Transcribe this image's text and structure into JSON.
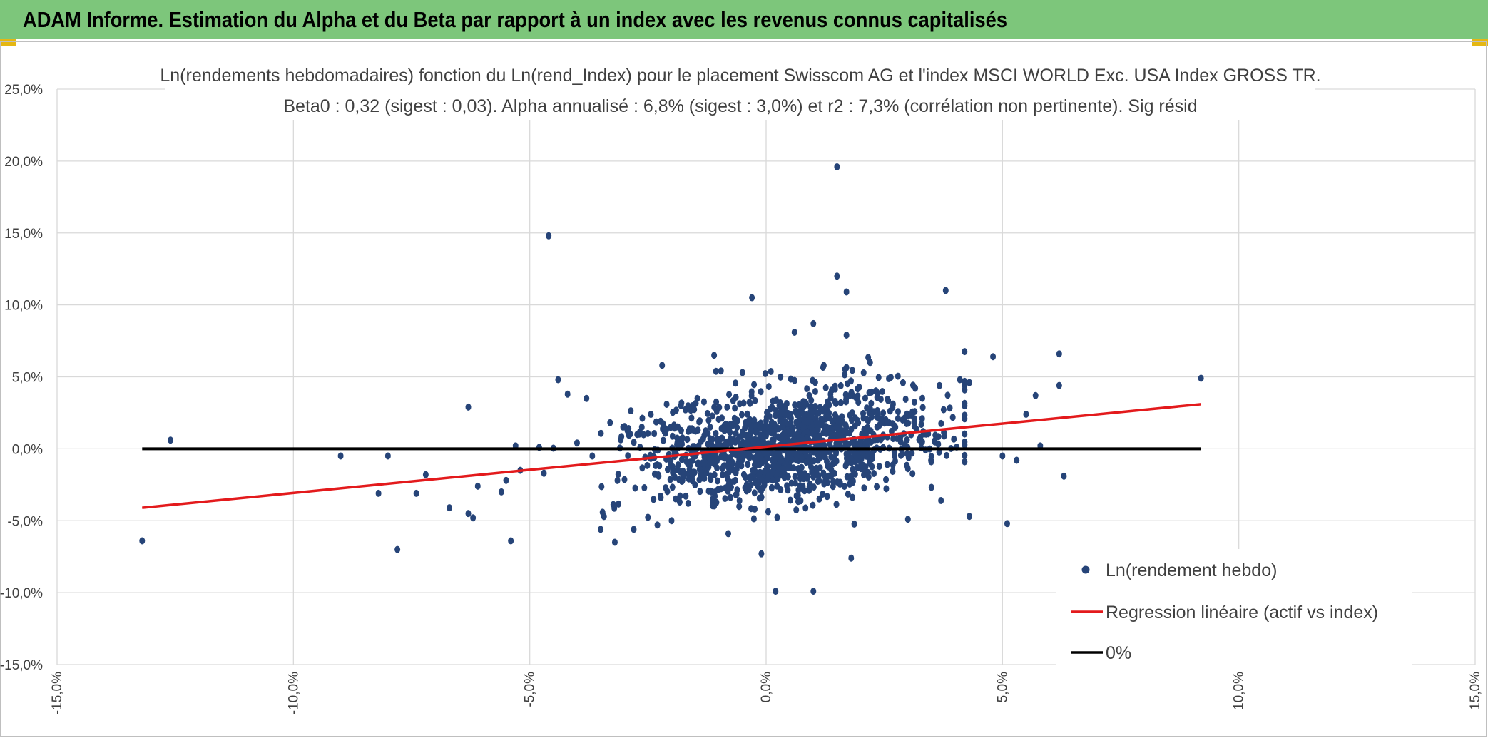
{
  "header": {
    "title": "ADAM Informe. Estimation du Alpha et du Beta par rapport à un index avec les revenus connus capitalisés"
  },
  "colors": {
    "banner": "#7dc67b",
    "accent_gold": "#e5b713",
    "points": "#264478",
    "regression": "#e31a1c",
    "zero_line": "#000000",
    "grid": "#d9d9d9"
  },
  "chart_data": {
    "type": "scatter",
    "title_lines": [
      "Ln(rendements hebdomadaires) fonction du Ln(rend_Index) pour le placement Swisscom AG et l'index MSCI WORLD Exc. USA Index GROSS TR.",
      "Beta0 : 0,32 (sigest : 0,03). Alpha annualisé : 6,8% (sigest : 3,0%) et r2 : 7,3% (corrélation non pertinente). Sig résid"
    ],
    "xlim": [
      -15,
      15
    ],
    "ylim": [
      -15,
      25
    ],
    "x_ticks": [
      -15,
      -10,
      -5,
      0,
      5,
      10,
      15
    ],
    "x_tick_labels": [
      "-15,0%",
      "-10,0%",
      "-5,0%",
      "0,0%",
      "5,0%",
      "10,0%",
      "15,0%"
    ],
    "y_ticks": [
      25,
      20,
      15,
      10,
      5,
      0,
      -5,
      -10,
      -15
    ],
    "y_tick_labels": [
      "25,0%",
      "20,0%",
      "15,0%",
      "10,0%",
      "5,0%",
      "0,0%",
      "-5,0%",
      "-10,0%",
      "-15,0%"
    ],
    "grid": true,
    "legend_position": "bottom-right",
    "legend": [
      {
        "label": "Ln(rendement hebdo)",
        "kind": "marker"
      },
      {
        "label": "Regression linéaire (actif vs index)",
        "kind": "line-red"
      },
      {
        "label": "0%",
        "kind": "line-black"
      }
    ],
    "regression": {
      "x": [
        -13.2,
        9.2
      ],
      "y": [
        -4.1,
        3.1
      ]
    },
    "zero_line": {
      "x": [
        -13.2,
        9.2
      ],
      "y": [
        0,
        0
      ]
    },
    "scatter_cloud": {
      "n": 1300,
      "mean_x": 0.4,
      "sd_x": 1.6,
      "beta": 0.32,
      "sd_resid": 1.85
    },
    "points": [
      [
        -13.2,
        -6.4
      ],
      [
        -12.6,
        0.6
      ],
      [
        -9.0,
        -0.5
      ],
      [
        -8.2,
        -3.1
      ],
      [
        -8.0,
        -0.5
      ],
      [
        -7.8,
        -7.0
      ],
      [
        -7.4,
        -3.1
      ],
      [
        -7.2,
        -1.8
      ],
      [
        -6.7,
        -4.1
      ],
      [
        -6.3,
        -4.5
      ],
      [
        -6.3,
        2.9
      ],
      [
        -6.2,
        -4.8
      ],
      [
        -6.1,
        -2.6
      ],
      [
        -5.6,
        -3.0
      ],
      [
        -5.5,
        -2.2
      ],
      [
        -5.4,
        -6.4
      ],
      [
        -5.3,
        0.2
      ],
      [
        -5.2,
        -1.5
      ],
      [
        -4.8,
        0.1
      ],
      [
        -4.7,
        -1.7
      ],
      [
        -4.6,
        14.8
      ],
      [
        -4.4,
        4.8
      ],
      [
        -4.2,
        3.8
      ],
      [
        -4.0,
        0.4
      ],
      [
        -3.8,
        3.5
      ],
      [
        -3.5,
        -5.6
      ],
      [
        -3.2,
        -6.5
      ],
      [
        -2.8,
        -5.6
      ],
      [
        -2.2,
        5.8
      ],
      [
        -2.3,
        -5.3
      ],
      [
        -1.8,
        3.0
      ],
      [
        -1.1,
        6.5
      ],
      [
        -0.8,
        -5.9
      ],
      [
        -0.5,
        5.3
      ],
      [
        -0.3,
        10.5
      ],
      [
        -0.1,
        -7.3
      ],
      [
        0.2,
        -9.9
      ],
      [
        1.0,
        -9.9
      ],
      [
        1.5,
        19.6
      ],
      [
        1.5,
        12.0
      ],
      [
        1.7,
        10.9
      ],
      [
        1.0,
        8.7
      ],
      [
        0.6,
        8.1
      ],
      [
        1.7,
        7.9
      ],
      [
        2.2,
        6.0
      ],
      [
        1.8,
        -7.6
      ],
      [
        3.8,
        11.0
      ],
      [
        4.1,
        4.8
      ],
      [
        4.3,
        4.6
      ],
      [
        4.3,
        -4.7
      ],
      [
        4.8,
        6.4
      ],
      [
        5.0,
        -0.5
      ],
      [
        5.1,
        -5.2
      ],
      [
        5.3,
        -0.8
      ],
      [
        5.5,
        2.4
      ],
      [
        5.7,
        3.7
      ],
      [
        5.8,
        0.2
      ],
      [
        6.2,
        6.6
      ],
      [
        6.2,
        4.4
      ],
      [
        6.3,
        -1.9
      ],
      [
        9.2,
        4.9
      ],
      [
        3.7,
        -3.6
      ],
      [
        3.0,
        -4.9
      ],
      [
        2.2,
        2.8
      ],
      [
        -2.0,
        -5.0
      ]
    ]
  }
}
